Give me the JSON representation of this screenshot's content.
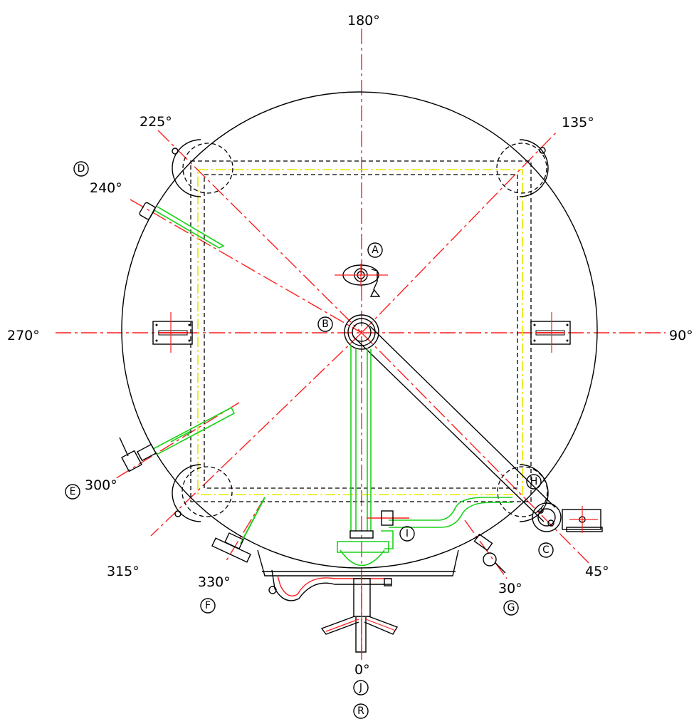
{
  "angle_labels": {
    "a0": "0°",
    "a30": "30°",
    "a45": "45°",
    "a90": "90°",
    "a135": "135°",
    "a180": "180°",
    "a225": "225°",
    "a240": "240°",
    "a270": "270°",
    "a300": "300°",
    "a315": "315°",
    "a330": "330°"
  },
  "nozzle_markers": {
    "A": "A",
    "B": "B",
    "C": "C",
    "D": "D",
    "E": "E",
    "F": "F",
    "G": "G",
    "H": "H",
    "I": "I",
    "J": "J",
    "R": "R"
  },
  "colors": {
    "outline": "#000000",
    "centerline": "#ff1e1e",
    "piping": "#19d219",
    "frame": "#e8e800"
  }
}
